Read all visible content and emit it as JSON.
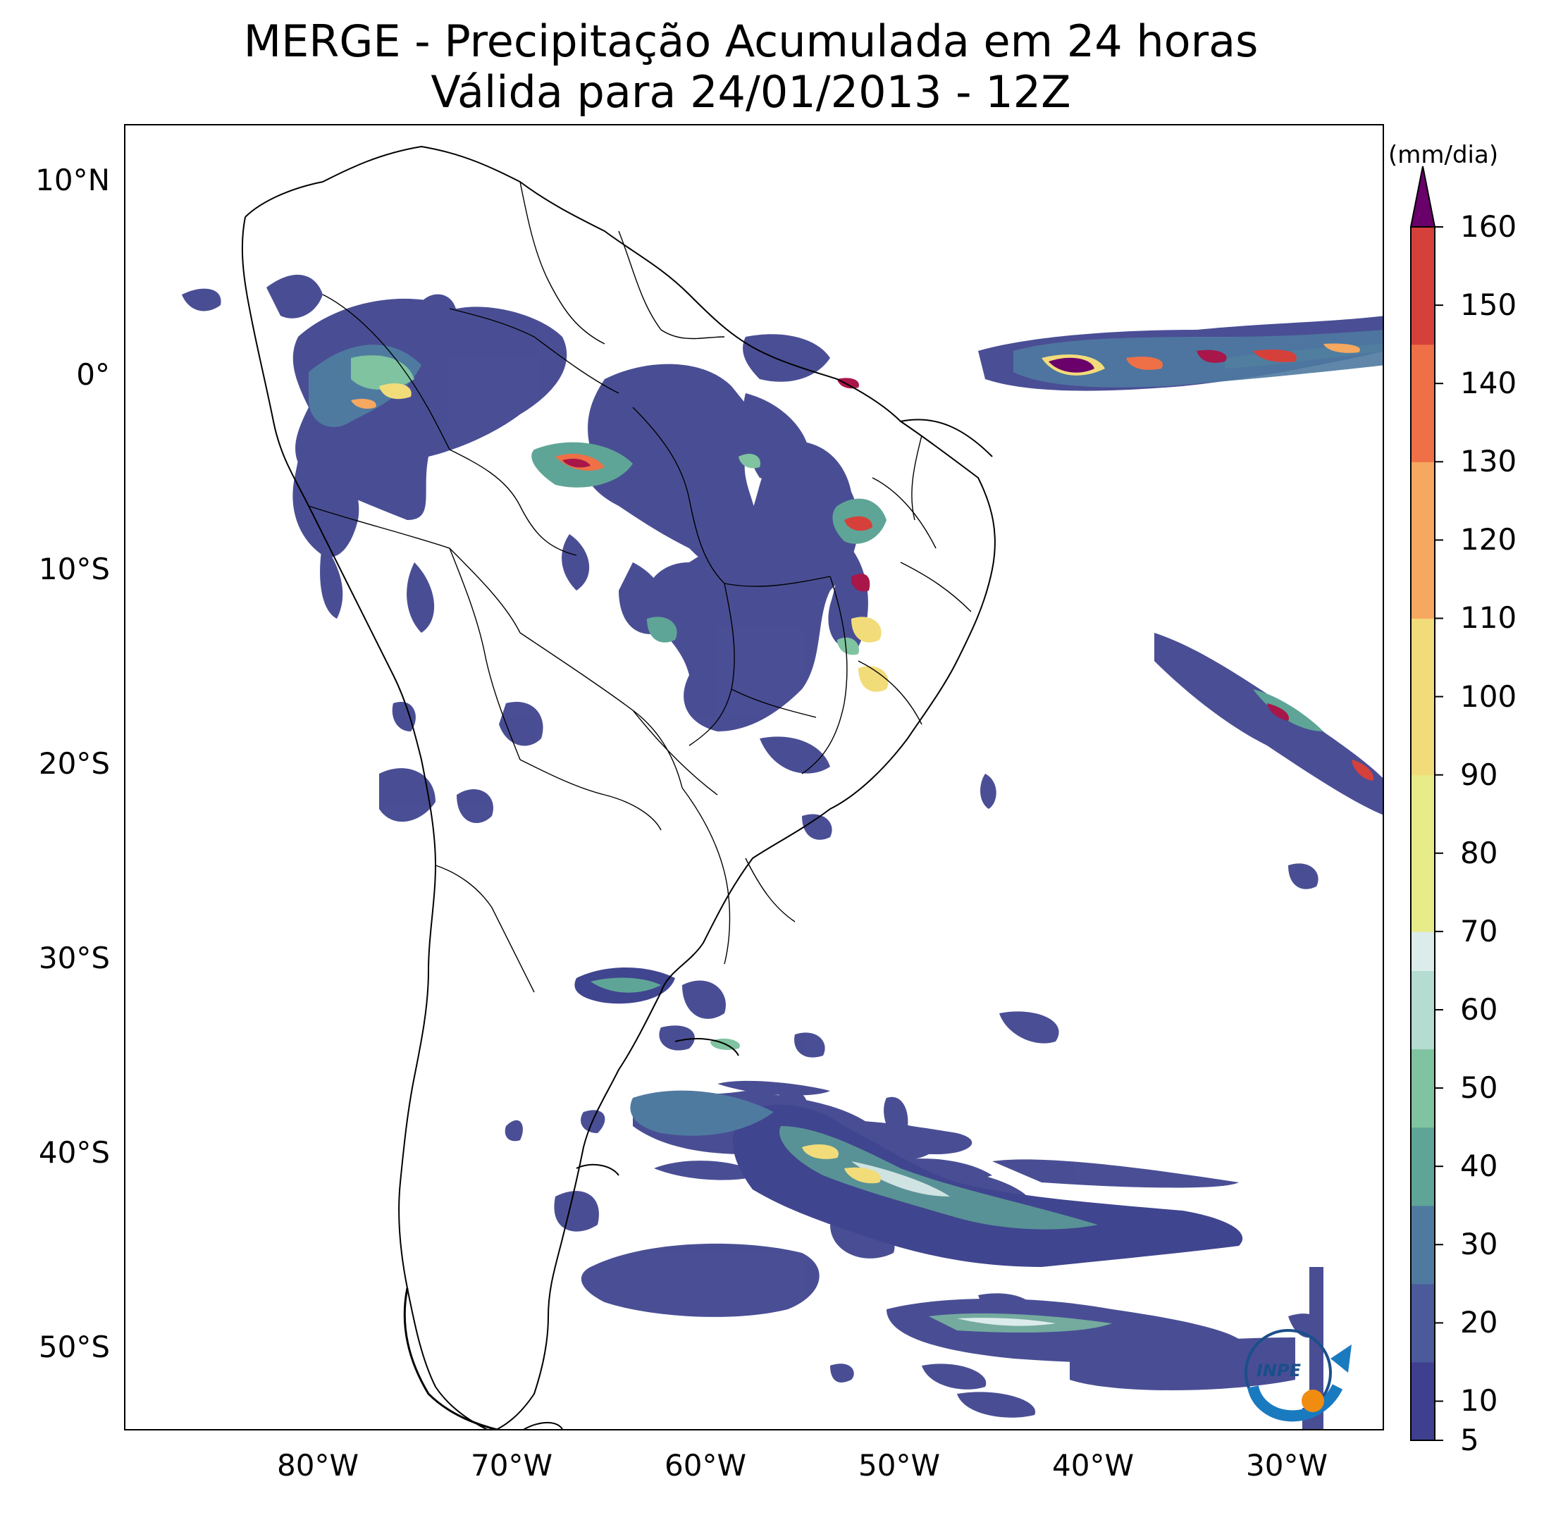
{
  "title": {
    "line1": "MERGE - Precipitação Acumulada em 24 horas",
    "line2": "Válida para 24/01/2013 - 12Z"
  },
  "axes": {
    "lat_labels": [
      "10°N",
      "0°",
      "10°S",
      "20°S",
      "30°S",
      "40°S",
      "50°S"
    ],
    "lat_values": [
      10,
      0,
      -10,
      -20,
      -30,
      -40,
      -50
    ],
    "lon_labels": [
      "80°W",
      "70°W",
      "60°W",
      "50°W",
      "40°W",
      "30°W"
    ],
    "lon_values": [
      -80,
      -70,
      -60,
      -50,
      -40,
      -30
    ],
    "lon_range": [
      -90,
      -25
    ],
    "lat_range": [
      -56,
      13
    ]
  },
  "colorbar": {
    "units": "(mm/dia)",
    "labels": [
      "160",
      "150",
      "140",
      "130",
      "120",
      "110",
      "100",
      "90",
      "80",
      "70",
      "60",
      "50",
      "40",
      "30",
      "20",
      "10",
      "5"
    ],
    "values": [
      160,
      150,
      140,
      130,
      120,
      110,
      100,
      90,
      80,
      70,
      60,
      50,
      40,
      30,
      20,
      10,
      5
    ],
    "extend": "max",
    "extend_color": "#6a006a",
    "stops": [
      {
        "v": 5,
        "c": "#3f3f8f"
      },
      {
        "v": 15,
        "c": "#4a5a9a"
      },
      {
        "v": 25,
        "c": "#4f7aa0"
      },
      {
        "v": 35,
        "c": "#5fa597"
      },
      {
        "v": 45,
        "c": "#7fc3a0"
      },
      {
        "v": 55,
        "c": "#b4dcd0"
      },
      {
        "v": 65,
        "c": "#dcecea"
      },
      {
        "v": 70,
        "c": "#e8ec88"
      },
      {
        "v": 90,
        "c": "#f2dc7a"
      },
      {
        "v": 110,
        "c": "#f6a860"
      },
      {
        "v": 130,
        "c": "#ef7046"
      },
      {
        "v": 145,
        "c": "#d6403a"
      },
      {
        "v": 160,
        "c": "#a8164a"
      }
    ]
  },
  "logo": {
    "text": "INPE"
  }
}
